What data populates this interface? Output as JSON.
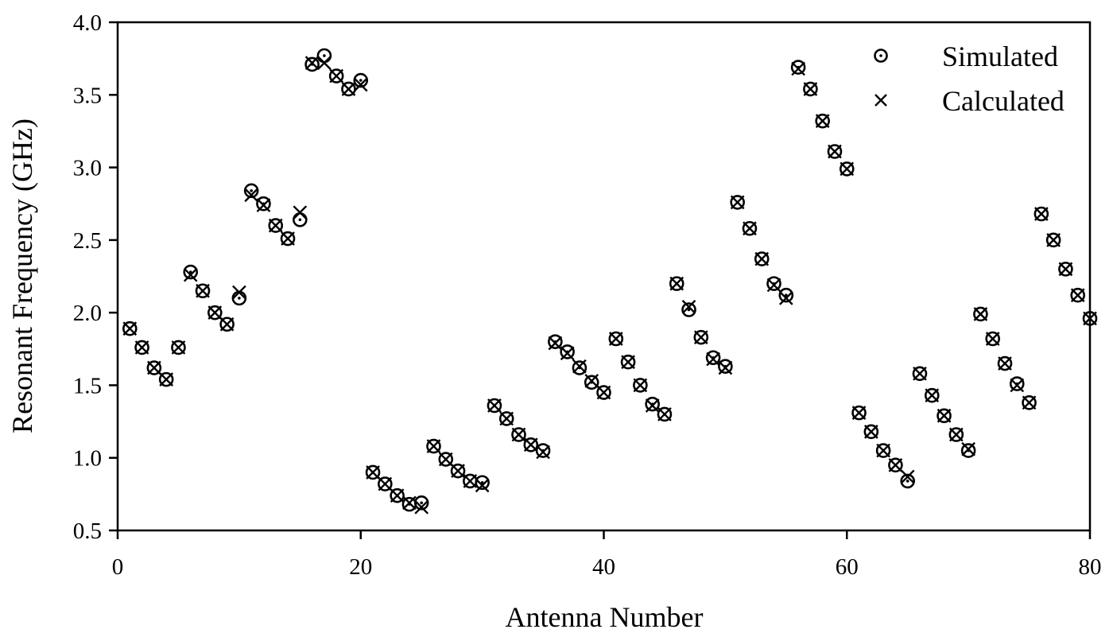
{
  "chart_data": {
    "type": "scatter",
    "title": "",
    "xlabel": "Antenna Number",
    "ylabel": "Resonant Frequency (GHz)",
    "xlim": [
      0,
      80
    ],
    "ylim": [
      0.5,
      4.0
    ],
    "x_ticks": [
      "0",
      "20",
      "40",
      "60",
      "80"
    ],
    "y_ticks": [
      "0.5",
      "1.0",
      "1.5",
      "2.0",
      "2.5",
      "3.0",
      "3.5",
      "4.0"
    ],
    "grid": false,
    "legend_position": "upper right",
    "x": [
      1,
      2,
      3,
      4,
      5,
      6,
      7,
      8,
      9,
      10,
      11,
      12,
      13,
      14,
      15,
      16,
      17,
      18,
      19,
      20,
      21,
      22,
      23,
      24,
      25,
      26,
      27,
      28,
      29,
      30,
      31,
      32,
      33,
      34,
      35,
      36,
      37,
      38,
      39,
      40,
      41,
      42,
      43,
      44,
      45,
      46,
      47,
      48,
      49,
      50,
      51,
      52,
      53,
      54,
      55,
      56,
      57,
      58,
      59,
      60,
      61,
      62,
      63,
      64,
      65,
      66,
      67,
      68,
      69,
      70,
      71,
      72,
      73,
      74,
      75,
      76,
      77,
      78,
      79,
      80
    ],
    "series": [
      {
        "name": "Simulated",
        "marker": "circle-dot",
        "values": [
          1.89,
          1.76,
          1.62,
          1.54,
          1.76,
          2.28,
          2.15,
          2.0,
          1.92,
          2.1,
          2.84,
          2.75,
          2.6,
          2.51,
          2.64,
          3.71,
          3.77,
          3.63,
          3.54,
          3.6,
          0.9,
          0.82,
          0.74,
          0.68,
          0.69,
          1.08,
          0.99,
          0.91,
          0.84,
          0.83,
          1.36,
          1.27,
          1.16,
          1.09,
          1.05,
          1.8,
          1.73,
          1.62,
          1.52,
          1.45,
          1.82,
          1.66,
          1.5,
          1.37,
          1.3,
          2.2,
          2.02,
          1.83,
          1.69,
          1.63,
          2.76,
          2.58,
          2.37,
          2.2,
          2.12,
          3.69,
          3.54,
          3.32,
          3.11,
          2.99,
          1.31,
          1.18,
          1.05,
          0.95,
          0.84,
          1.58,
          1.43,
          1.29,
          1.16,
          1.05,
          1.99,
          1.82,
          1.65,
          1.51,
          1.38,
          2.68,
          2.5,
          2.3,
          2.12,
          1.96
        ]
      },
      {
        "name": "Calculated",
        "marker": "x",
        "values": [
          1.89,
          1.76,
          1.62,
          1.54,
          1.76,
          2.26,
          2.15,
          2.0,
          1.92,
          2.14,
          2.81,
          2.74,
          2.6,
          2.51,
          2.69,
          3.72,
          3.72,
          3.63,
          3.54,
          3.57,
          0.9,
          0.82,
          0.74,
          0.69,
          0.66,
          1.08,
          0.99,
          0.91,
          0.84,
          0.81,
          1.36,
          1.27,
          1.16,
          1.09,
          1.04,
          1.79,
          1.72,
          1.63,
          1.53,
          1.45,
          1.82,
          1.66,
          1.5,
          1.36,
          1.3,
          2.2,
          2.04,
          1.83,
          1.68,
          1.62,
          2.76,
          2.58,
          2.37,
          2.19,
          2.1,
          3.68,
          3.54,
          3.32,
          3.11,
          2.99,
          1.31,
          1.18,
          1.05,
          0.95,
          0.87,
          1.58,
          1.43,
          1.29,
          1.16,
          1.06,
          1.99,
          1.82,
          1.65,
          1.5,
          1.38,
          2.68,
          2.5,
          2.3,
          2.12,
          1.96
        ]
      }
    ]
  },
  "legend": {
    "simulated_label": "Simulated",
    "calculated_label": "Calculated"
  },
  "axes": {
    "x_title": "Antenna Number",
    "y_title": "Resonant Frequency (GHz)"
  }
}
